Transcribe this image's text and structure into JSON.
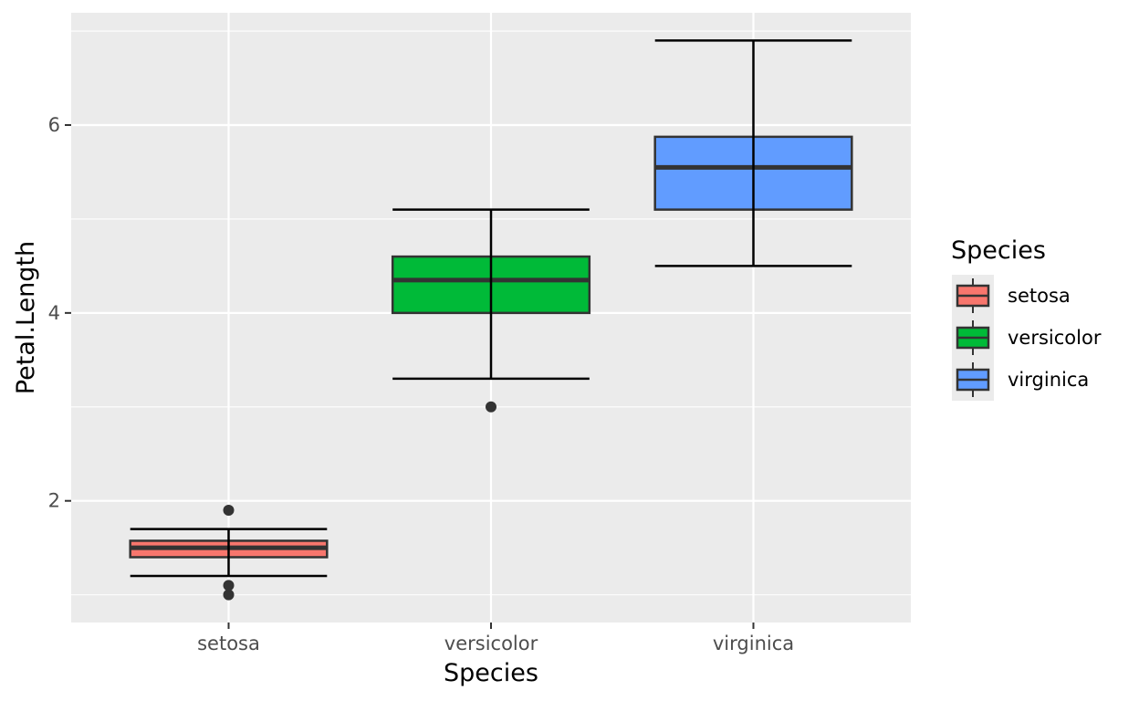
{
  "chart_data": {
    "type": "boxplot",
    "xlabel": "Species",
    "ylabel": "Petal.Length",
    "ylim": [
      0.705,
      7.195
    ],
    "y_ticks": [
      2,
      4,
      6
    ],
    "categories": [
      "setosa",
      "versicolor",
      "virginica"
    ],
    "series": [
      {
        "name": "setosa",
        "color": "#F8766D",
        "whisker_low": 1.2,
        "q1": 1.4,
        "median": 1.5,
        "q3": 1.575,
        "whisker_high": 1.7,
        "outliers": [
          1.0,
          1.1,
          1.9
        ]
      },
      {
        "name": "versicolor",
        "color": "#00BA38",
        "whisker_low": 3.3,
        "q1": 4.0,
        "median": 4.35,
        "q3": 4.6,
        "whisker_high": 5.1,
        "outliers": [
          3.0
        ]
      },
      {
        "name": "virginica",
        "color": "#619CFF",
        "whisker_low": 4.5,
        "q1": 5.1,
        "median": 5.55,
        "q3": 5.875,
        "whisker_high": 6.9,
        "outliers": []
      }
    ],
    "grid": true,
    "legend": {
      "title": "Species",
      "position": "right"
    },
    "panel_color": "#EBEBEB"
  }
}
